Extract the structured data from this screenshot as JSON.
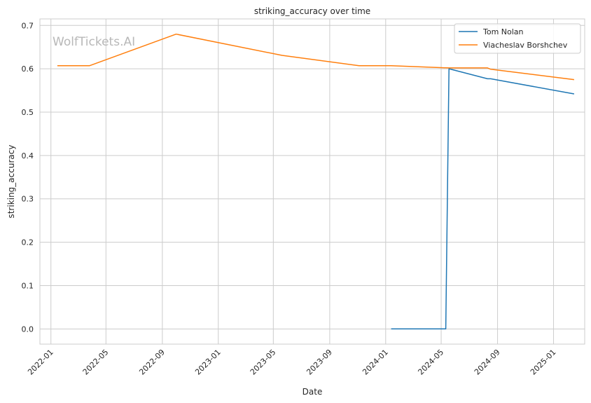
{
  "chart_data": {
    "type": "line",
    "title": "striking_accuracy over time",
    "xlabel": "Date",
    "ylabel": "striking_accuracy",
    "watermark": "WolfTickets.AI",
    "x_ticks": [
      "2022-01",
      "2022-05",
      "2022-09",
      "2023-01",
      "2023-05",
      "2023-09",
      "2024-01",
      "2024-05",
      "2024-09",
      "2025-01"
    ],
    "y_ticks": [
      "0.0",
      "0.1",
      "0.2",
      "0.3",
      "0.4",
      "0.5",
      "0.6",
      "0.7"
    ],
    "xlim": [
      "2021-12-08",
      "2025-03-10"
    ],
    "ylim": [
      -0.035,
      0.715
    ],
    "grid": true,
    "legend_position": "top-right",
    "series": [
      {
        "name": "Tom Nolan",
        "color": "#1f77b4",
        "points": [
          {
            "x": "2024-01-13",
            "y": 0.0
          },
          {
            "x": "2024-05-11",
            "y": 0.0
          },
          {
            "x": "2024-05-18",
            "y": 0.6
          },
          {
            "x": "2024-08-10",
            "y": 0.577
          },
          {
            "x": "2024-08-17",
            "y": 0.577
          },
          {
            "x": "2025-02-15",
            "y": 0.542
          }
        ]
      },
      {
        "name": "Viacheslav Borshchev",
        "color": "#ff7f0e",
        "points": [
          {
            "x": "2022-01-15",
            "y": 0.607
          },
          {
            "x": "2022-03-26",
            "y": 0.607
          },
          {
            "x": "2022-10-01",
            "y": 0.68
          },
          {
            "x": "2023-05-20",
            "y": 0.631
          },
          {
            "x": "2023-11-04",
            "y": 0.607
          },
          {
            "x": "2024-01-13",
            "y": 0.607
          },
          {
            "x": "2024-05-18",
            "y": 0.602
          },
          {
            "x": "2024-08-10",
            "y": 0.602
          },
          {
            "x": "2024-08-17",
            "y": 0.599
          },
          {
            "x": "2025-02-15",
            "y": 0.575
          }
        ]
      }
    ]
  }
}
